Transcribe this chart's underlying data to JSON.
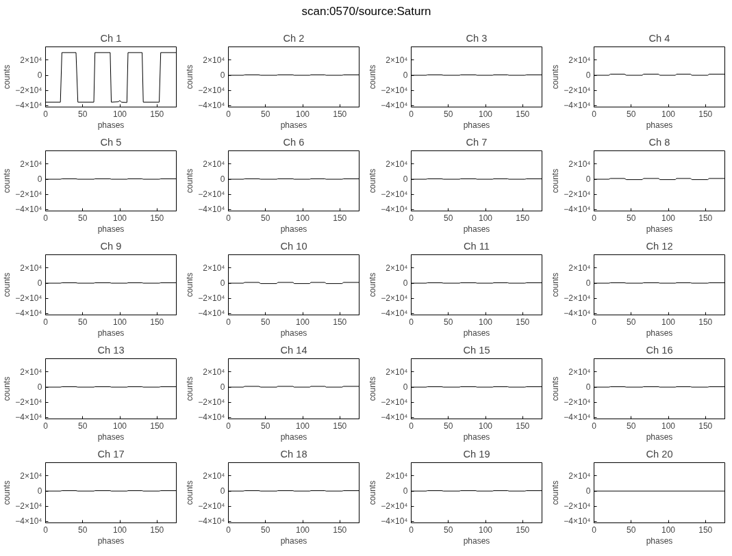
{
  "chart_data": [
    {
      "type": "line",
      "title": "Ch 1",
      "annotations": [
        "scan:0570/source:Saturn"
      ],
      "xlabel": "phases",
      "ylabel": "counts",
      "xlim": [
        0,
        176
      ],
      "ylim": [
        -42000,
        37600
      ],
      "xticks": [
        0,
        50,
        100,
        150
      ],
      "yticks": [
        {
          "value": -40000,
          "label": "−4×10⁴"
        },
        {
          "value": -20000,
          "label": "−2×10⁴"
        },
        0,
        {
          "value": 20000,
          "label": "2×10⁴"
        }
      ],
      "color": "#000000",
      "x": [
        0,
        20,
        22,
        41,
        43.5,
        65,
        66.5,
        87,
        88.5,
        98,
        100,
        102,
        109.5,
        111,
        130,
        131.5,
        153,
        155,
        176
      ],
      "values": [
        -35500,
        -35500,
        30000,
        30000,
        -35500,
        -35500,
        30000,
        30000,
        -35500,
        -35000,
        -33500,
        -35500,
        -36000,
        30000,
        30000,
        -35500,
        -35500,
        30000,
        30000
      ]
    },
    {
      "type": "line",
      "title": "Ch 2",
      "xlabel": "phases",
      "ylabel": "counts",
      "xlim": [
        0,
        176
      ],
      "ylim": [
        -42000,
        37600
      ],
      "xticks": [
        0,
        50,
        100,
        150
      ],
      "yticks": [
        {
          "value": -40000,
          "label": "−4×10⁴"
        },
        {
          "value": -20000,
          "label": "−2×10⁴"
        },
        0,
        {
          "value": 20000,
          "label": "2×10⁴"
        }
      ],
      "color": "#000000",
      "x": [
        0,
        20,
        22,
        41,
        43.5,
        65,
        66.5,
        87,
        88.5,
        109.5,
        111,
        130,
        131.5,
        153,
        155,
        176
      ],
      "values": [
        0,
        0,
        500,
        500,
        0,
        0,
        500,
        500,
        0,
        0,
        500,
        500,
        0,
        0,
        500,
        500
      ]
    },
    {
      "type": "line",
      "title": "Ch 3",
      "xlabel": "phases",
      "ylabel": "counts",
      "xlim": [
        0,
        176
      ],
      "ylim": [
        -42000,
        37600
      ],
      "xticks": [
        0,
        50,
        100,
        150
      ],
      "yticks": [
        {
          "value": -40000,
          "label": "−4×10⁴"
        },
        {
          "value": -20000,
          "label": "−2×10⁴"
        },
        0,
        {
          "value": 20000,
          "label": "2×10⁴"
        }
      ],
      "color": "#000000",
      "x": [
        0,
        20,
        22,
        41,
        43.5,
        65,
        66.5,
        87,
        88.5,
        109.5,
        111,
        130,
        131.5,
        153,
        155,
        176
      ],
      "values": [
        0,
        0,
        500,
        500,
        0,
        0,
        500,
        500,
        0,
        0,
        500,
        500,
        0,
        0,
        500,
        500
      ]
    },
    {
      "type": "line",
      "title": "Ch 4",
      "xlabel": "phases",
      "ylabel": "counts",
      "xlim": [
        0,
        176
      ],
      "ylim": [
        -42000,
        37600
      ],
      "xticks": [
        0,
        50,
        100,
        150
      ],
      "yticks": [
        {
          "value": -40000,
          "label": "−4×10⁴"
        },
        {
          "value": -20000,
          "label": "−2×10⁴"
        },
        0,
        {
          "value": 20000,
          "label": "2×10⁴"
        }
      ],
      "color": "#000000",
      "x": [
        0,
        20,
        22,
        41,
        43.5,
        65,
        66.5,
        87,
        88.5,
        109.5,
        111,
        130,
        131.5,
        153,
        155,
        176
      ],
      "values": [
        0,
        0,
        1500,
        1500,
        0,
        0,
        1500,
        1500,
        0,
        0,
        1500,
        1500,
        0,
        0,
        1500,
        1500
      ]
    },
    {
      "type": "line",
      "title": "Ch 5",
      "xlabel": "phases",
      "ylabel": "counts",
      "xlim": [
        0,
        176
      ],
      "ylim": [
        -42000,
        37600
      ],
      "xticks": [
        0,
        50,
        100,
        150
      ],
      "yticks": [
        {
          "value": -40000,
          "label": "−4×10⁴"
        },
        {
          "value": -20000,
          "label": "−2×10⁴"
        },
        0,
        {
          "value": 20000,
          "label": "2×10⁴"
        }
      ],
      "color": "#000000",
      "x": [
        0,
        20,
        22,
        41,
        43.5,
        65,
        66.5,
        87,
        88.5,
        109.5,
        111,
        130,
        131.5,
        153,
        155,
        176
      ],
      "values": [
        0,
        0,
        500,
        500,
        0,
        0,
        500,
        500,
        0,
        0,
        500,
        500,
        0,
        0,
        500,
        500
      ]
    },
    {
      "type": "line",
      "title": "Ch 6",
      "xlabel": "phases",
      "ylabel": "counts",
      "xlim": [
        0,
        176
      ],
      "ylim": [
        -42000,
        37600
      ],
      "xticks": [
        0,
        50,
        100,
        150
      ],
      "yticks": [
        {
          "value": -40000,
          "label": "−4×10⁴"
        },
        {
          "value": -20000,
          "label": "−2×10⁴"
        },
        0,
        {
          "value": 20000,
          "label": "2×10⁴"
        }
      ],
      "color": "#000000",
      "x": [
        0,
        20,
        22,
        41,
        43.5,
        65,
        66.5,
        87,
        88.5,
        109.5,
        111,
        130,
        131.5,
        153,
        155,
        176
      ],
      "values": [
        0,
        0,
        500,
        500,
        0,
        0,
        500,
        500,
        0,
        0,
        500,
        500,
        0,
        0,
        500,
        500
      ]
    },
    {
      "type": "line",
      "title": "Ch 7",
      "xlabel": "phases",
      "ylabel": "counts",
      "xlim": [
        0,
        176
      ],
      "ylim": [
        -42000,
        37600
      ],
      "xticks": [
        0,
        50,
        100,
        150
      ],
      "yticks": [
        {
          "value": -40000,
          "label": "−4×10⁴"
        },
        {
          "value": -20000,
          "label": "−2×10⁴"
        },
        0,
        {
          "value": 20000,
          "label": "2×10⁴"
        }
      ],
      "color": "#000000",
      "x": [
        0,
        20,
        22,
        41,
        43.5,
        65,
        66.5,
        87,
        88.5,
        109.5,
        111,
        130,
        131.5,
        153,
        155,
        176
      ],
      "values": [
        0,
        0,
        500,
        500,
        0,
        0,
        500,
        500,
        0,
        0,
        500,
        500,
        0,
        0,
        500,
        500
      ]
    },
    {
      "type": "line",
      "title": "Ch 8",
      "xlabel": "phases",
      "ylabel": "counts",
      "xlim": [
        0,
        176
      ],
      "ylim": [
        -42000,
        37600
      ],
      "xticks": [
        0,
        50,
        100,
        150
      ],
      "yticks": [
        {
          "value": -40000,
          "label": "−4×10⁴"
        },
        {
          "value": -20000,
          "label": "−2×10⁴"
        },
        0,
        {
          "value": 20000,
          "label": "2×10⁴"
        }
      ],
      "color": "#000000",
      "x": [
        0,
        20,
        22,
        41,
        43.5,
        65,
        66.5,
        87,
        88.5,
        109.5,
        111,
        130,
        131.5,
        153,
        155,
        176
      ],
      "values": [
        0,
        0,
        1000,
        1000,
        -500,
        -500,
        1000,
        1000,
        -500,
        -500,
        1000,
        1000,
        -500,
        -500,
        1000,
        1000
      ]
    },
    {
      "type": "line",
      "title": "Ch 9",
      "xlabel": "phases",
      "ylabel": "counts",
      "xlim": [
        0,
        176
      ],
      "ylim": [
        -42000,
        37600
      ],
      "xticks": [
        0,
        50,
        100,
        150
      ],
      "yticks": [
        {
          "value": -40000,
          "label": "−4×10⁴"
        },
        {
          "value": -20000,
          "label": "−2×10⁴"
        },
        0,
        {
          "value": 20000,
          "label": "2×10⁴"
        }
      ],
      "color": "#000000",
      "x": [
        0,
        20,
        22,
        41,
        43.5,
        65,
        66.5,
        87,
        88.5,
        109.5,
        111,
        130,
        131.5,
        153,
        155,
        176
      ],
      "values": [
        0,
        0,
        500,
        500,
        0,
        0,
        500,
        500,
        0,
        0,
        500,
        500,
        0,
        0,
        500,
        500
      ]
    },
    {
      "type": "line",
      "title": "Ch 10",
      "xlabel": "phases",
      "ylabel": "counts",
      "xlim": [
        0,
        176
      ],
      "ylim": [
        -42000,
        37600
      ],
      "xticks": [
        0,
        50,
        100,
        150
      ],
      "yticks": [
        {
          "value": -40000,
          "label": "−4×10⁴"
        },
        {
          "value": -20000,
          "label": "−2×10⁴"
        },
        0,
        {
          "value": 20000,
          "label": "2×10⁴"
        }
      ],
      "color": "#000000",
      "x": [
        0,
        20,
        22,
        41,
        43.5,
        65,
        66.5,
        87,
        88.5,
        109.5,
        111,
        130,
        131.5,
        153,
        155,
        176
      ],
      "values": [
        0,
        0,
        1000,
        1000,
        -500,
        -500,
        1000,
        1000,
        -500,
        -500,
        1000,
        1000,
        -500,
        -500,
        1000,
        1000
      ]
    },
    {
      "type": "line",
      "title": "Ch 11",
      "xlabel": "phases",
      "ylabel": "counts",
      "xlim": [
        0,
        176
      ],
      "ylim": [
        -42000,
        37600
      ],
      "xticks": [
        0,
        50,
        100,
        150
      ],
      "yticks": [
        {
          "value": -40000,
          "label": "−4×10⁴"
        },
        {
          "value": -20000,
          "label": "−2×10⁴"
        },
        0,
        {
          "value": 20000,
          "label": "2×10⁴"
        }
      ],
      "color": "#000000",
      "x": [
        0,
        20,
        22,
        41,
        43.5,
        65,
        66.5,
        87,
        88.5,
        109.5,
        111,
        130,
        131.5,
        153,
        155,
        176
      ],
      "values": [
        0,
        0,
        500,
        500,
        0,
        0,
        500,
        500,
        0,
        0,
        500,
        500,
        0,
        0,
        500,
        500
      ]
    },
    {
      "type": "line",
      "title": "Ch 12",
      "xlabel": "phases",
      "ylabel": "counts",
      "xlim": [
        0,
        176
      ],
      "ylim": [
        -42000,
        37600
      ],
      "xticks": [
        0,
        50,
        100,
        150
      ],
      "yticks": [
        {
          "value": -40000,
          "label": "−4×10⁴"
        },
        {
          "value": -20000,
          "label": "−2×10⁴"
        },
        0,
        {
          "value": 20000,
          "label": "2×10⁴"
        }
      ],
      "color": "#000000",
      "x": [
        0,
        20,
        22,
        41,
        43.5,
        65,
        66.5,
        87,
        88.5,
        109.5,
        111,
        130,
        131.5,
        153,
        155,
        176
      ],
      "values": [
        0,
        0,
        500,
        500,
        0,
        0,
        500,
        500,
        0,
        0,
        500,
        500,
        0,
        0,
        500,
        500
      ]
    },
    {
      "type": "line",
      "title": "Ch 13",
      "xlabel": "phases",
      "ylabel": "counts",
      "xlim": [
        0,
        176
      ],
      "ylim": [
        -42000,
        37600
      ],
      "xticks": [
        0,
        50,
        100,
        150
      ],
      "yticks": [
        {
          "value": -40000,
          "label": "−4×10⁴"
        },
        {
          "value": -20000,
          "label": "−2×10⁴"
        },
        0,
        {
          "value": 20000,
          "label": "2×10⁴"
        }
      ],
      "color": "#000000",
      "x": [
        0,
        20,
        22,
        41,
        43.5,
        65,
        66.5,
        87,
        88.5,
        109.5,
        111,
        130,
        131.5,
        153,
        155,
        176
      ],
      "values": [
        0,
        0,
        500,
        500,
        0,
        0,
        500,
        500,
        0,
        0,
        500,
        500,
        0,
        0,
        500,
        500
      ]
    },
    {
      "type": "line",
      "title": "Ch 14",
      "xlabel": "phases",
      "ylabel": "counts",
      "xlim": [
        0,
        176
      ],
      "ylim": [
        -42000,
        37600
      ],
      "xticks": [
        0,
        50,
        100,
        150
      ],
      "yticks": [
        {
          "value": -40000,
          "label": "−4×10⁴"
        },
        {
          "value": -20000,
          "label": "−2×10⁴"
        },
        0,
        {
          "value": 20000,
          "label": "2×10⁴"
        }
      ],
      "color": "#000000",
      "x": [
        0,
        20,
        22,
        41,
        43.5,
        65,
        66.5,
        87,
        88.5,
        109.5,
        111,
        130,
        131.5,
        153,
        155,
        176
      ],
      "values": [
        0,
        0,
        1000,
        1000,
        0,
        0,
        1000,
        1000,
        0,
        0,
        1000,
        1000,
        0,
        0,
        1000,
        1000
      ]
    },
    {
      "type": "line",
      "title": "Ch 15",
      "xlabel": "phases",
      "ylabel": "counts",
      "xlim": [
        0,
        176
      ],
      "ylim": [
        -42000,
        37600
      ],
      "xticks": [
        0,
        50,
        100,
        150
      ],
      "yticks": [
        {
          "value": -40000,
          "label": "−4×10⁴"
        },
        {
          "value": -20000,
          "label": "−2×10⁴"
        },
        0,
        {
          "value": 20000,
          "label": "2×10⁴"
        }
      ],
      "color": "#000000",
      "x": [
        0,
        20,
        22,
        41,
        43.5,
        65,
        66.5,
        87,
        88.5,
        109.5,
        111,
        130,
        131.5,
        153,
        155,
        176
      ],
      "values": [
        0,
        0,
        500,
        500,
        0,
        0,
        500,
        500,
        0,
        0,
        500,
        500,
        0,
        0,
        500,
        500
      ]
    },
    {
      "type": "line",
      "title": "Ch 16",
      "xlabel": "phases",
      "ylabel": "counts",
      "xlim": [
        0,
        176
      ],
      "ylim": [
        -42000,
        37600
      ],
      "xticks": [
        0,
        50,
        100,
        150
      ],
      "yticks": [
        {
          "value": -40000,
          "label": "−4×10⁴"
        },
        {
          "value": -20000,
          "label": "−2×10⁴"
        },
        0,
        {
          "value": 20000,
          "label": "2×10⁴"
        }
      ],
      "color": "#000000",
      "x": [
        0,
        20,
        22,
        41,
        43.5,
        65,
        66.5,
        87,
        88.5,
        109.5,
        111,
        130,
        131.5,
        153,
        155,
        176
      ],
      "values": [
        0,
        0,
        500,
        500,
        0,
        0,
        500,
        500,
        0,
        0,
        500,
        500,
        0,
        0,
        500,
        500
      ]
    },
    {
      "type": "line",
      "title": "Ch 17",
      "xlabel": "phases",
      "ylabel": "counts",
      "xlim": [
        0,
        176
      ],
      "ylim": [
        -42000,
        37600
      ],
      "xticks": [
        0,
        50,
        100,
        150
      ],
      "yticks": [
        {
          "value": -40000,
          "label": "−4×10⁴"
        },
        {
          "value": -20000,
          "label": "−2×10⁴"
        },
        0,
        {
          "value": 20000,
          "label": "2×10⁴"
        }
      ],
      "color": "#000000",
      "x": [
        0,
        20,
        22,
        41,
        43.5,
        65,
        66.5,
        87,
        88.5,
        109.5,
        111,
        130,
        131.5,
        153,
        155,
        176
      ],
      "values": [
        0,
        0,
        500,
        500,
        0,
        0,
        500,
        500,
        0,
        0,
        500,
        500,
        0,
        0,
        500,
        500
      ]
    },
    {
      "type": "line",
      "title": "Ch 18",
      "xlabel": "phases",
      "ylabel": "counts",
      "xlim": [
        0,
        176
      ],
      "ylim": [
        -42000,
        37600
      ],
      "xticks": [
        0,
        50,
        100,
        150
      ],
      "yticks": [
        {
          "value": -40000,
          "label": "−4×10⁴"
        },
        {
          "value": -20000,
          "label": "−2×10⁴"
        },
        0,
        {
          "value": 20000,
          "label": "2×10⁴"
        }
      ],
      "color": "#000000",
      "x": [
        0,
        20,
        22,
        41,
        43.5,
        65,
        66.5,
        87,
        88.5,
        109.5,
        111,
        130,
        131.5,
        153,
        155,
        176
      ],
      "values": [
        0,
        0,
        500,
        500,
        0,
        0,
        500,
        500,
        0,
        0,
        500,
        500,
        0,
        0,
        500,
        500
      ]
    },
    {
      "type": "line",
      "title": "Ch 19",
      "xlabel": "phases",
      "ylabel": "counts",
      "xlim": [
        0,
        176
      ],
      "ylim": [
        -42000,
        37600
      ],
      "xticks": [
        0,
        50,
        100,
        150
      ],
      "yticks": [
        {
          "value": -40000,
          "label": "−4×10⁴"
        },
        {
          "value": -20000,
          "label": "−2×10⁴"
        },
        0,
        {
          "value": 20000,
          "label": "2×10⁴"
        }
      ],
      "color": "#000000",
      "x": [
        0,
        20,
        22,
        41,
        43.5,
        65,
        66.5,
        87,
        88.5,
        109.5,
        111,
        130,
        131.5,
        153,
        155,
        176
      ],
      "values": [
        0,
        0,
        500,
        500,
        0,
        0,
        500,
        500,
        0,
        0,
        500,
        500,
        0,
        0,
        500,
        500
      ]
    },
    {
      "type": "line",
      "title": "Ch 20",
      "xlabel": "phases",
      "ylabel": "counts",
      "xlim": [
        0,
        176
      ],
      "ylim": [
        -42000,
        37600
      ],
      "xticks": [
        0,
        50,
        100,
        150
      ],
      "yticks": [
        {
          "value": -40000,
          "label": "−4×10⁴"
        },
        {
          "value": -20000,
          "label": "−2×10⁴"
        },
        0,
        {
          "value": 20000,
          "label": "2×10⁴"
        }
      ],
      "color": "#000000",
      "x": [
        0,
        176
      ],
      "values": [
        0,
        0
      ]
    }
  ]
}
